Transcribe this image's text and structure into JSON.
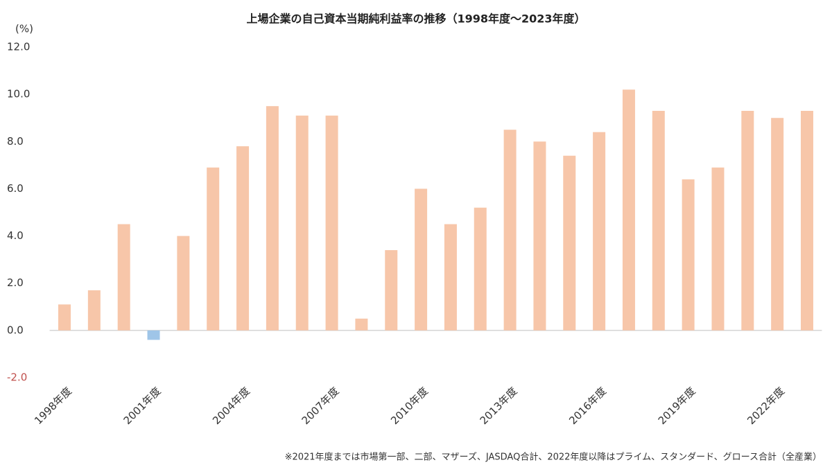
{
  "chart_data": {
    "type": "bar",
    "title": "上場企業の自己資本当期純利益率の推移（1998年度〜2023年度）",
    "y_unit_label": "(%)",
    "note": "※2021年度までは市場第一部、二部、マザーズ、JASDAQ合計、2022年度以降はプライム、スタンダード、グロース合計（全産業）",
    "categories": [
      "1998年度",
      null,
      null,
      "2001年度",
      null,
      null,
      "2004年度",
      null,
      null,
      "2007年度",
      null,
      null,
      "2010年度",
      null,
      null,
      "2013年度",
      null,
      null,
      "2016年度",
      null,
      null,
      "2019年度",
      null,
      null,
      "2022年度",
      null
    ],
    "values": [
      1.1,
      1.7,
      4.5,
      -0.4,
      4.0,
      6.9,
      7.8,
      9.5,
      9.1,
      9.1,
      0.5,
      3.4,
      6.0,
      4.5,
      5.2,
      8.5,
      8.0,
      7.4,
      8.4,
      10.2,
      9.3,
      6.4,
      6.9,
      9.3,
      9.0,
      9.3
    ],
    "color": "#f7c6a9",
    "negative_color": "#9fc5e8",
    "ylim": [
      -2,
      12
    ],
    "yticks": [
      {
        "value": -2,
        "label": "-2.0"
      },
      {
        "value": 0,
        "label": "0.0"
      },
      {
        "value": 2,
        "label": "2.0"
      },
      {
        "value": 4,
        "label": "4.0"
      },
      {
        "value": 6,
        "label": "6.0"
      },
      {
        "value": 8,
        "label": "8.0"
      },
      {
        "value": 10,
        "label": "10.0"
      },
      {
        "value": 12,
        "label": "12.0"
      }
    ],
    "negative_tick_color": "#c0504d",
    "grid": false
  }
}
